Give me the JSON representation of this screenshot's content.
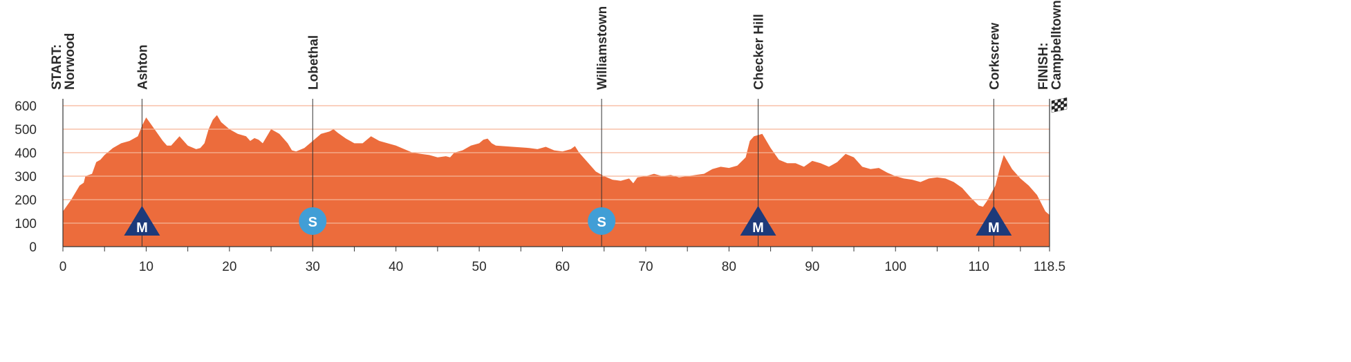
{
  "chart_data": {
    "type": "area",
    "title": "",
    "xlabel": "",
    "ylabel": "",
    "xlim": [
      0,
      118.5
    ],
    "ylim": [
      0,
      600
    ],
    "x_ticks": [
      0,
      10,
      20,
      30,
      40,
      50,
      60,
      70,
      80,
      90,
      100,
      110,
      118.5
    ],
    "x_tick_labels": [
      "0",
      "10",
      "20",
      "30",
      "40",
      "50",
      "60",
      "70",
      "80",
      "90",
      "100",
      "110",
      "118.5"
    ],
    "y_ticks": [
      0,
      100,
      200,
      300,
      400,
      500,
      600
    ],
    "y_tick_labels": [
      "0",
      "100",
      "200",
      "300",
      "400",
      "500",
      "600"
    ],
    "grid": true,
    "colors": {
      "fill": "#ec6c3c",
      "mountain": "#1d3a7a",
      "sprint": "#419ed6",
      "text": "#2b2b2b"
    },
    "profile": [
      [
        0,
        150
      ],
      [
        1,
        200
      ],
      [
        2,
        260
      ],
      [
        2.5,
        272
      ],
      [
        2.7,
        300
      ],
      [
        3.5,
        310
      ],
      [
        4,
        360
      ],
      [
        4.5,
        370
      ],
      [
        5,
        390
      ],
      [
        6,
        420
      ],
      [
        7,
        440
      ],
      [
        8,
        450
      ],
      [
        9,
        470
      ],
      [
        9.5,
        515
      ],
      [
        10,
        550
      ],
      [
        11,
        500
      ],
      [
        12,
        450
      ],
      [
        12.5,
        430
      ],
      [
        13,
        430
      ],
      [
        14,
        470
      ],
      [
        15,
        430
      ],
      [
        16,
        415
      ],
      [
        16.5,
        420
      ],
      [
        17,
        440
      ],
      [
        17.5,
        500
      ],
      [
        18,
        540
      ],
      [
        18.5,
        560
      ],
      [
        19,
        530
      ],
      [
        20,
        500
      ],
      [
        21,
        480
      ],
      [
        22,
        470
      ],
      [
        22.5,
        450
      ],
      [
        23,
        462
      ],
      [
        23.5,
        455
      ],
      [
        24,
        440
      ],
      [
        25,
        500
      ],
      [
        26,
        480
      ],
      [
        27,
        440
      ],
      [
        27.5,
        410
      ],
      [
        28,
        405
      ],
      [
        29,
        420
      ],
      [
        30,
        450
      ],
      [
        31,
        480
      ],
      [
        32,
        490
      ],
      [
        32.5,
        500
      ],
      [
        33,
        485
      ],
      [
        34,
        460
      ],
      [
        35,
        440
      ],
      [
        36,
        440
      ],
      [
        37,
        470
      ],
      [
        38,
        450
      ],
      [
        39,
        440
      ],
      [
        40,
        430
      ],
      [
        41,
        415
      ],
      [
        42,
        400
      ],
      [
        43,
        395
      ],
      [
        44,
        390
      ],
      [
        45,
        380
      ],
      [
        46,
        385
      ],
      [
        46.5,
        380
      ],
      [
        47,
        400
      ],
      [
        48,
        410
      ],
      [
        49,
        430
      ],
      [
        50,
        440
      ],
      [
        50.5,
        455
      ],
      [
        51,
        460
      ],
      [
        51.5,
        440
      ],
      [
        52,
        430
      ],
      [
        54,
        425
      ],
      [
        56,
        420
      ],
      [
        57,
        415
      ],
      [
        58,
        425
      ],
      [
        59,
        410
      ],
      [
        60,
        405
      ],
      [
        61,
        415
      ],
      [
        61.5,
        428
      ],
      [
        62,
        400
      ],
      [
        63,
        360
      ],
      [
        64,
        320
      ],
      [
        65,
        300
      ],
      [
        66,
        285
      ],
      [
        67,
        280
      ],
      [
        68,
        290
      ],
      [
        68.5,
        270
      ],
      [
        69,
        295
      ],
      [
        70,
        300
      ],
      [
        71,
        310
      ],
      [
        72,
        300
      ],
      [
        73,
        305
      ],
      [
        74,
        295
      ],
      [
        75,
        300
      ],
      [
        76,
        305
      ],
      [
        77,
        310
      ],
      [
        78,
        330
      ],
      [
        79,
        340
      ],
      [
        80,
        335
      ],
      [
        81,
        345
      ],
      [
        82,
        380
      ],
      [
        82.5,
        450
      ],
      [
        83,
        470
      ],
      [
        84,
        480
      ],
      [
        85,
        420
      ],
      [
        86,
        370
      ],
      [
        87,
        355
      ],
      [
        88,
        355
      ],
      [
        89,
        340
      ],
      [
        90,
        365
      ],
      [
        91,
        355
      ],
      [
        92,
        340
      ],
      [
        93,
        360
      ],
      [
        94,
        395
      ],
      [
        95,
        380
      ],
      [
        96,
        340
      ],
      [
        97,
        330
      ],
      [
        98,
        335
      ],
      [
        99,
        315
      ],
      [
        100,
        300
      ],
      [
        101,
        290
      ],
      [
        102,
        285
      ],
      [
        103,
        275
      ],
      [
        104,
        290
      ],
      [
        105,
        295
      ],
      [
        106,
        290
      ],
      [
        107,
        275
      ],
      [
        108,
        250
      ],
      [
        109,
        210
      ],
      [
        110,
        175
      ],
      [
        110.5,
        170
      ],
      [
        111,
        195
      ],
      [
        112,
        260
      ],
      [
        112.5,
        330
      ],
      [
        113,
        390
      ],
      [
        114,
        330
      ],
      [
        115,
        290
      ],
      [
        116,
        260
      ],
      [
        117,
        220
      ],
      [
        118,
        150
      ],
      [
        118.5,
        135
      ]
    ],
    "places": [
      {
        "km": 0,
        "lines": [
          "START:",
          "Norwood"
        ]
      },
      {
        "km": 9.5,
        "lines": [
          "Ashton"
        ]
      },
      {
        "km": 30,
        "lines": [
          "Lobethal"
        ]
      },
      {
        "km": 64.7,
        "lines": [
          "Williamstown"
        ]
      },
      {
        "km": 83.5,
        "lines": [
          "Checker Hill"
        ]
      },
      {
        "km": 111.8,
        "lines": [
          "Corkscrew"
        ]
      },
      {
        "km": 118.5,
        "lines": [
          "FINISH:",
          "Campbelltown"
        ]
      }
    ],
    "markers": [
      {
        "km": 9.5,
        "type": "mountain",
        "label": "M"
      },
      {
        "km": 30,
        "type": "sprint",
        "label": "S"
      },
      {
        "km": 64.7,
        "type": "sprint",
        "label": "S"
      },
      {
        "km": 83.5,
        "type": "mountain",
        "label": "M"
      },
      {
        "km": 111.8,
        "type": "mountain",
        "label": "M"
      }
    ],
    "finish_icon": "checkered-flag-icon"
  }
}
